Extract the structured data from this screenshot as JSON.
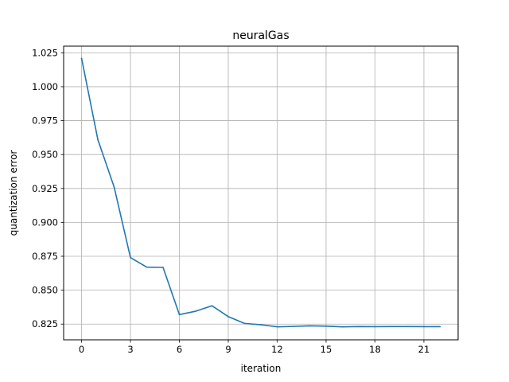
{
  "chart_data": {
    "type": "line",
    "title": "neuralGas",
    "xlabel": "iteration",
    "ylabel": "quantization error",
    "xlim": [
      -1.1,
      23.1
    ],
    "ylim": [
      0.8134,
      1.0299
    ],
    "xticks": [
      0,
      3,
      6,
      9,
      12,
      15,
      18,
      21
    ],
    "yticks": [
      0.825,
      0.85,
      0.875,
      0.9,
      0.925,
      0.95,
      0.975,
      1.0,
      1.025
    ],
    "ytick_labels": [
      "0.825",
      "0.850",
      "0.875",
      "0.900",
      "0.925",
      "0.950",
      "0.975",
      "1.000",
      "1.025"
    ],
    "grid": true,
    "line_color": "#1f77b4",
    "series": [
      {
        "x": [
          0,
          1,
          2,
          3,
          4,
          5,
          6,
          7,
          8,
          9,
          10,
          11,
          12,
          13,
          14,
          15,
          16,
          17,
          18,
          19,
          20,
          21,
          22
        ],
        "values": [
          1.021,
          0.961,
          0.926,
          0.874,
          0.867,
          0.8668,
          0.832,
          0.8345,
          0.8385,
          0.8305,
          0.8255,
          0.8245,
          0.823,
          0.8233,
          0.8237,
          0.8235,
          0.823,
          0.8232,
          0.8231,
          0.8232,
          0.8232,
          0.8231,
          0.8231
        ]
      }
    ]
  }
}
